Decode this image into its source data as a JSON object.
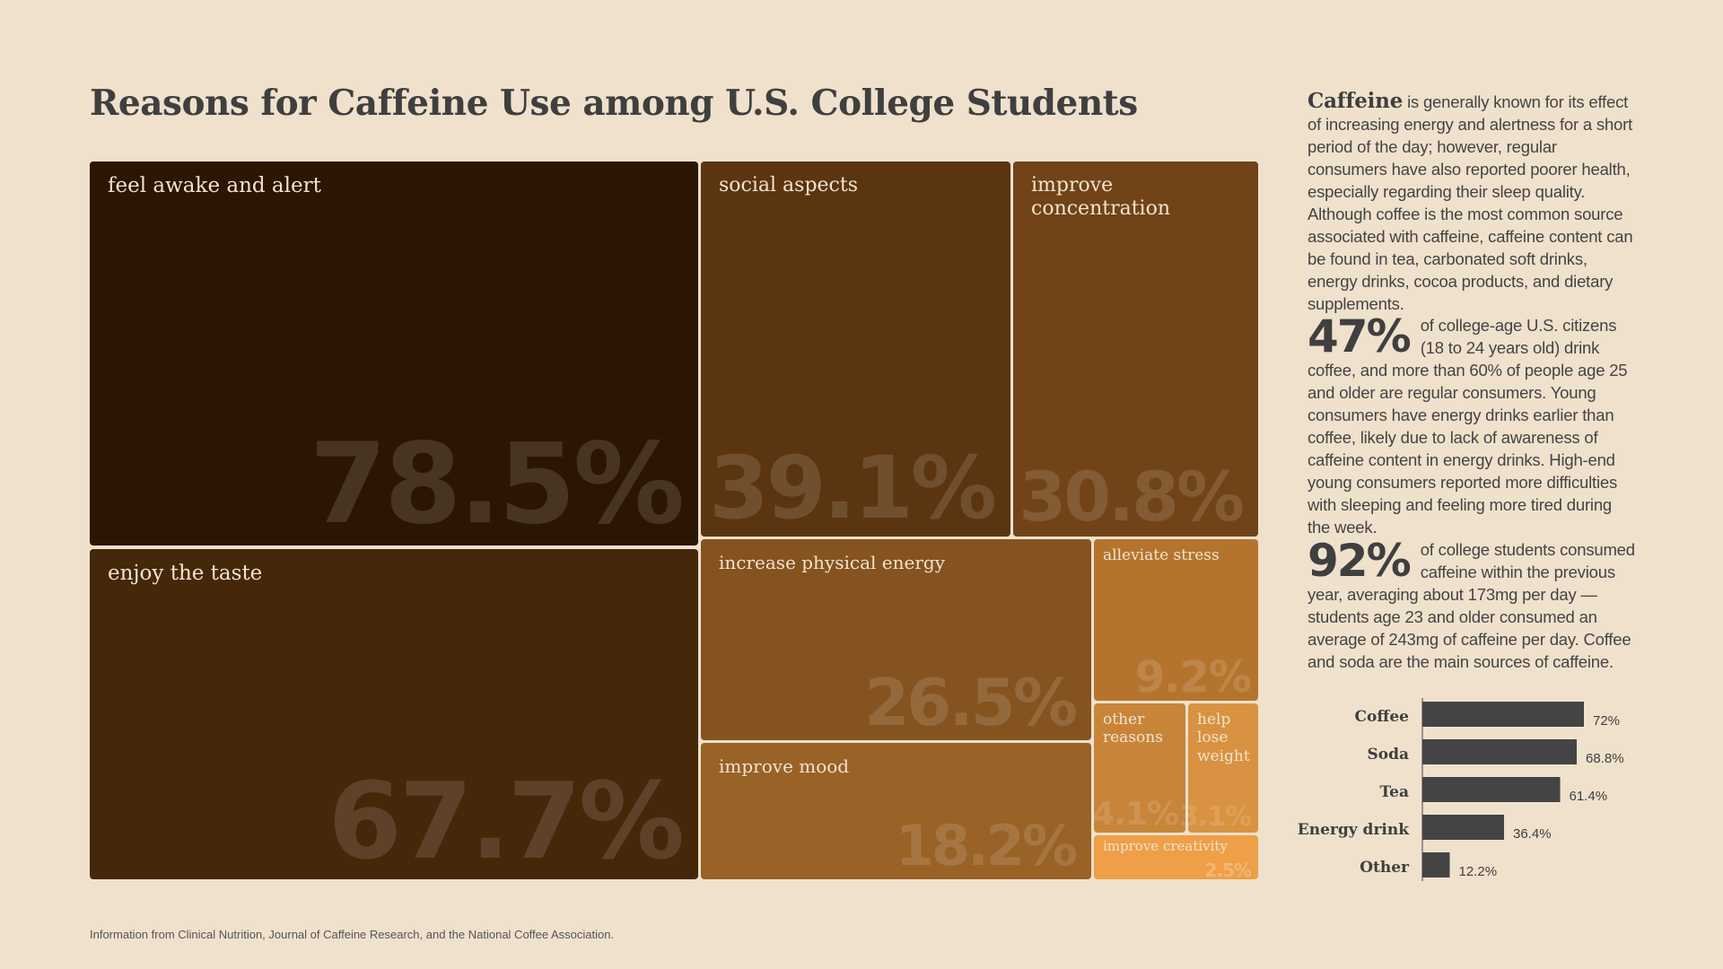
{
  "title": "Reasons for Caffeine Use among U.S. College Students",
  "chart_data": [
    {
      "type": "treemap",
      "title": "Reasons for Caffeine Use among U.S. College Students",
      "items": [
        {
          "label": "feel awake and alert",
          "value": 78.5,
          "display": "78.5%",
          "color": "#2c1603"
        },
        {
          "label": "enjoy the taste",
          "value": 67.7,
          "display": "67.7%",
          "color": "#45270a"
        },
        {
          "label": "social aspects",
          "value": 39.1,
          "display": "39.1%",
          "color": "#5b3510"
        },
        {
          "label": "improve concentration",
          "value": 30.8,
          "display": "30.8%",
          "color": "#714318"
        },
        {
          "label": "increase physical energy",
          "value": 26.5,
          "display": "26.5%",
          "color": "#855320"
        },
        {
          "label": "improve mood",
          "value": 18.2,
          "display": "18.2%",
          "color": "#996226"
        },
        {
          "label": "alleviate stress",
          "value": 9.2,
          "display": "9.2%",
          "color": "#b5742e"
        },
        {
          "label": "other reasons",
          "value": 4.1,
          "display": "4.1%",
          "color": "#c8853a"
        },
        {
          "label": "help lose weight",
          "value": 3.1,
          "display": "3.1%",
          "color": "#d99241"
        },
        {
          "label": "improve creativity",
          "value": 2.5,
          "display": "2.5%",
          "color": "#ee9f48"
        }
      ]
    },
    {
      "type": "bar",
      "orientation": "horizontal",
      "categories": [
        "Coffee",
        "Soda",
        "Tea",
        "Energy drink",
        "Other"
      ],
      "values": [
        72,
        68.8,
        61.4,
        36.4,
        12.2
      ],
      "display": [
        "72%",
        "68.8%",
        "61.4%",
        "36.4%",
        "12.2%"
      ],
      "bar_color": "#444444"
    }
  ],
  "side": {
    "p1_lead": "Caffeine",
    "p1_text": " is generally known for its effect of increasing energy and alertness for a short period of the day; however, regular consumers have also reported poorer health, especially regarding their sleep quality. Although coffee is the most common source associated with caffeine, caffeine content can be found in tea, carbonated soft drinks, energy drinks, cocoa products, and dietary supplements.",
    "p2_big": "47%",
    "p2_text": "of college-age U.S. citizens (18 to 24 years old) drink coffee, and more than 60% of people age 25 and older are regular consumers. Young consumers have energy drinks earlier than coffee, likely due to lack of awareness of caffeine content in energy drinks. High-end young consumers reported more difficulties with sleeping and feeling more tired during the week.",
    "p3_big": "92%",
    "p3_text": "of college students consumed caffeine within the previous year, averaging about 173mg per day — students age 23 and older consumed an average of 243mg of caffeine per day. Coffee and soda are the main sources of caffeine."
  },
  "footnote": "Information from Clinical Nutrition, Journal of Caffeine Research, and the National Coffee Association."
}
